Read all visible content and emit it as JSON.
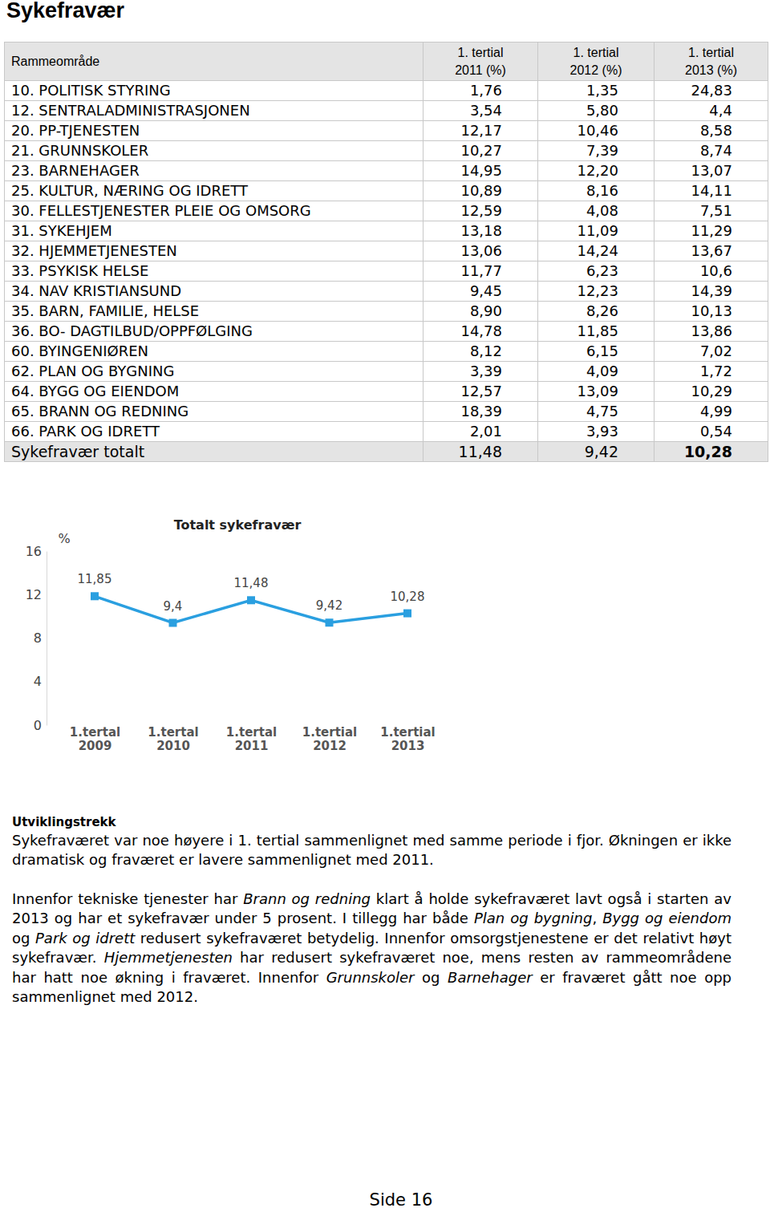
{
  "heading": "Sykefravær",
  "table": {
    "header": [
      [
        "Rammeområde"
      ],
      [
        "1. tertial",
        "2011 (%)"
      ],
      [
        "1. tertial",
        "2012 (%)"
      ],
      [
        "1. tertial",
        "2013 (%)"
      ]
    ],
    "rows": [
      [
        "10. POLITISK STYRING",
        "1,76",
        "1,35",
        "24,83"
      ],
      [
        "12. SENTRALADMINISTRASJONEN",
        "3,54",
        "5,80",
        "4,4"
      ],
      [
        "20. PP-TJENESTEN",
        "12,17",
        "10,46",
        "8,58"
      ],
      [
        "21. GRUNNSKOLER",
        "10,27",
        "7,39",
        "8,74"
      ],
      [
        "23. BARNEHAGER",
        "14,95",
        "12,20",
        "13,07"
      ],
      [
        "25. KULTUR, NÆRING OG IDRETT",
        "10,89",
        "8,16",
        "14,11"
      ],
      [
        "30. FELLESTJENESTER PLEIE OG OMSORG",
        "12,59",
        "4,08",
        "7,51"
      ],
      [
        "31. SYKEHJEM",
        "13,18",
        "11,09",
        "11,29"
      ],
      [
        "32. HJEMMETJENESTEN",
        "13,06",
        "14,24",
        "13,67"
      ],
      [
        "33. PSYKISK HELSE",
        "11,77",
        "6,23",
        "10,6"
      ],
      [
        "34. NAV KRISTIANSUND",
        "9,45",
        "12,23",
        "14,39"
      ],
      [
        "35. BARN, FAMILIE, HELSE",
        "8,90",
        "8,26",
        "10,13"
      ],
      [
        "36. BO- DAGTILBUD/OPPFØLGING",
        "14,78",
        "11,85",
        "13,86"
      ],
      [
        "60. BYINGENIØREN",
        "8,12",
        "6,15",
        "7,02"
      ],
      [
        "62. PLAN OG BYGNING",
        "3,39",
        "4,09",
        "1,72"
      ],
      [
        "64. BYGG OG EIENDOM",
        "12,57",
        "13,09",
        "10,29"
      ],
      [
        "65. BRANN OG REDNING",
        "18,39",
        "4,75",
        "4,99"
      ],
      [
        "66. PARK OG IDRETT",
        "2,01",
        "3,93",
        "0,54"
      ]
    ],
    "total": [
      "Sykefravær totalt",
      "11,48",
      "9,42",
      "10,28"
    ]
  },
  "chart_data": {
    "type": "line",
    "title": "Totalt sykefravær",
    "y_label": "%",
    "categories": [
      "1.tertal 2009",
      "1.tertal 2010",
      "1.tertal 2011",
      "1.tertial 2012",
      "1.tertial 2013"
    ],
    "values": [
      11.85,
      9.4,
      11.48,
      9.42,
      10.28
    ],
    "value_labels": [
      "11,85",
      "9,4",
      "11,48",
      "9,42",
      "10,28"
    ],
    "color": "#2a9fe0",
    "marker": "square",
    "ylim": [
      0,
      16
    ],
    "yticks": [
      0,
      4,
      8,
      12,
      16
    ],
    "data_labels": true,
    "grid": false
  },
  "text": {
    "subheading": "Utviklingstrekk",
    "paragraphs": [
      [
        {
          "text": "Sykefraværet var noe høyere i 1. tertial sammenlignet med samme periode i fjor. Økningen er ikke dramatisk og fraværet er lavere sammenlignet med 2011.",
          "italic": false
        }
      ],
      [
        {
          "text": "Innenfor tekniske tjenester har ",
          "italic": false
        },
        {
          "text": "Brann og redning",
          "italic": true
        },
        {
          "text": " klart å holde sykefraværet lavt også i starten av 2013 og har et sykefravær under 5 prosent. I tillegg har både ",
          "italic": false
        },
        {
          "text": "Plan og bygning",
          "italic": true
        },
        {
          "text": ", ",
          "italic": false
        },
        {
          "text": "Bygg og eiendom",
          "italic": true
        },
        {
          "text": " og ",
          "italic": false
        },
        {
          "text": "Park og idrett",
          "italic": true
        },
        {
          "text": " redusert sykefraværet betydelig. Innenfor omsorgstjenestene er det relativt høyt sykefravær. ",
          "italic": false
        },
        {
          "text": "Hjemmetjenesten",
          "italic": true
        },
        {
          "text": " har redusert sykefraværet noe, mens resten av rammeområdene har hatt noe økning i fraværet. Innenfor ",
          "italic": false
        },
        {
          "text": "Grunnskoler",
          "italic": true
        },
        {
          "text": " og ",
          "italic": false
        },
        {
          "text": "Barnehager",
          "italic": true
        },
        {
          "text": " er fraværet gått noe opp sammenlignet med 2012.",
          "italic": false
        }
      ]
    ]
  },
  "footer": "Side 16"
}
